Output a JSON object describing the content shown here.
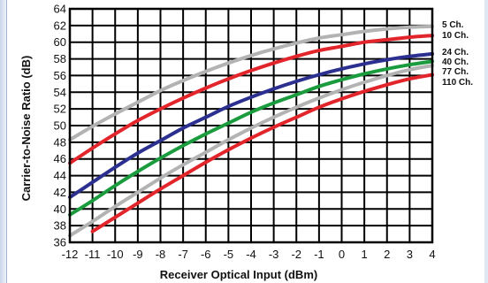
{
  "chart_data": {
    "type": "line",
    "xlabel": "Receiver Optical Input (dBm)",
    "ylabel": "Carrier-to-Noise Ratio (dB)",
    "xlim": [
      -12,
      4
    ],
    "ylim": [
      36,
      64
    ],
    "x_ticks": [
      "-12",
      "-11",
      "-10",
      "-9",
      "-8",
      "-7",
      "-6",
      "-5",
      "-4",
      "-3",
      "-2",
      "-1",
      "0",
      "1",
      "2",
      "3",
      "4"
    ],
    "y_ticks": [
      "36",
      "38",
      "40",
      "42",
      "44",
      "46",
      "48",
      "50",
      "52",
      "54",
      "56",
      "58",
      "60",
      "62",
      "64"
    ],
    "grid": true,
    "legend_placement": "right",
    "series": [
      {
        "name": "5 Ch.",
        "color": "#b3b3b3",
        "x": [
          -12,
          -11,
          -10,
          -9,
          -8,
          -7,
          -6,
          -5,
          -4,
          -3,
          -2,
          -1,
          0,
          1,
          2,
          3,
          4
        ],
        "y": [
          48.3,
          49.9,
          51.4,
          52.8,
          54.2,
          55.4,
          56.5,
          57.5,
          58.4,
          59.2,
          59.9,
          60.5,
          60.9,
          61.3,
          61.6,
          61.8,
          61.9
        ]
      },
      {
        "name": "10 Ch.",
        "color": "#e2242b",
        "x": [
          -12,
          -11,
          -10,
          -9,
          -8,
          -7,
          -6,
          -5,
          -4,
          -3,
          -2,
          -1,
          0,
          1,
          2,
          3,
          4
        ],
        "y": [
          45.5,
          47.3,
          49.0,
          50.6,
          52.0,
          53.3,
          54.5,
          55.6,
          56.6,
          57.5,
          58.3,
          59.0,
          59.5,
          60.0,
          60.3,
          60.6,
          60.8
        ]
      },
      {
        "name": "24 Ch.",
        "color": "#2b2f8f",
        "x": [
          -12,
          -11,
          -10,
          -9,
          -8,
          -7,
          -6,
          -5,
          -4,
          -3,
          -2,
          -1,
          0,
          1,
          2,
          3,
          4
        ],
        "y": [
          41.4,
          43.2,
          45.0,
          46.7,
          48.2,
          49.7,
          51.0,
          52.3,
          53.4,
          54.4,
          55.3,
          56.1,
          56.8,
          57.4,
          57.9,
          58.3,
          58.6
        ]
      },
      {
        "name": "40 Ch.",
        "color": "#1a9c3e",
        "x": [
          -12,
          -11,
          -10,
          -9,
          -8,
          -7,
          -6,
          -5,
          -4,
          -3,
          -2,
          -1,
          0,
          1,
          2,
          3,
          4
        ],
        "y": [
          39.3,
          41.0,
          42.8,
          44.5,
          46.1,
          47.6,
          49.0,
          50.3,
          51.6,
          52.7,
          53.7,
          54.7,
          55.5,
          56.2,
          56.8,
          57.3,
          57.7
        ]
      },
      {
        "name": "77 Ch.",
        "color": "#b3b3b3",
        "x": [
          -12,
          -11,
          -10,
          -9,
          -8,
          -7,
          -6,
          -5,
          -4,
          -3,
          -2,
          -1,
          0,
          1,
          2,
          3,
          4
        ],
        "y": [
          36.8,
          38.5,
          40.3,
          42.0,
          43.7,
          45.3,
          46.8,
          48.3,
          49.7,
          51.0,
          52.2,
          53.3,
          54.3,
          55.2,
          56.0,
          56.7,
          57.2
        ]
      },
      {
        "name": "110 Ch.",
        "color": "#e2242b",
        "x": [
          -11,
          -10,
          -9,
          -8,
          -7,
          -6,
          -5,
          -4,
          -3,
          -2,
          -1,
          0,
          1,
          2,
          3,
          4
        ],
        "y": [
          37.3,
          39.0,
          40.7,
          42.4,
          44.0,
          45.6,
          47.1,
          48.5,
          49.8,
          51.0,
          52.2,
          53.2,
          54.1,
          54.9,
          55.6,
          56.1
        ]
      }
    ]
  }
}
